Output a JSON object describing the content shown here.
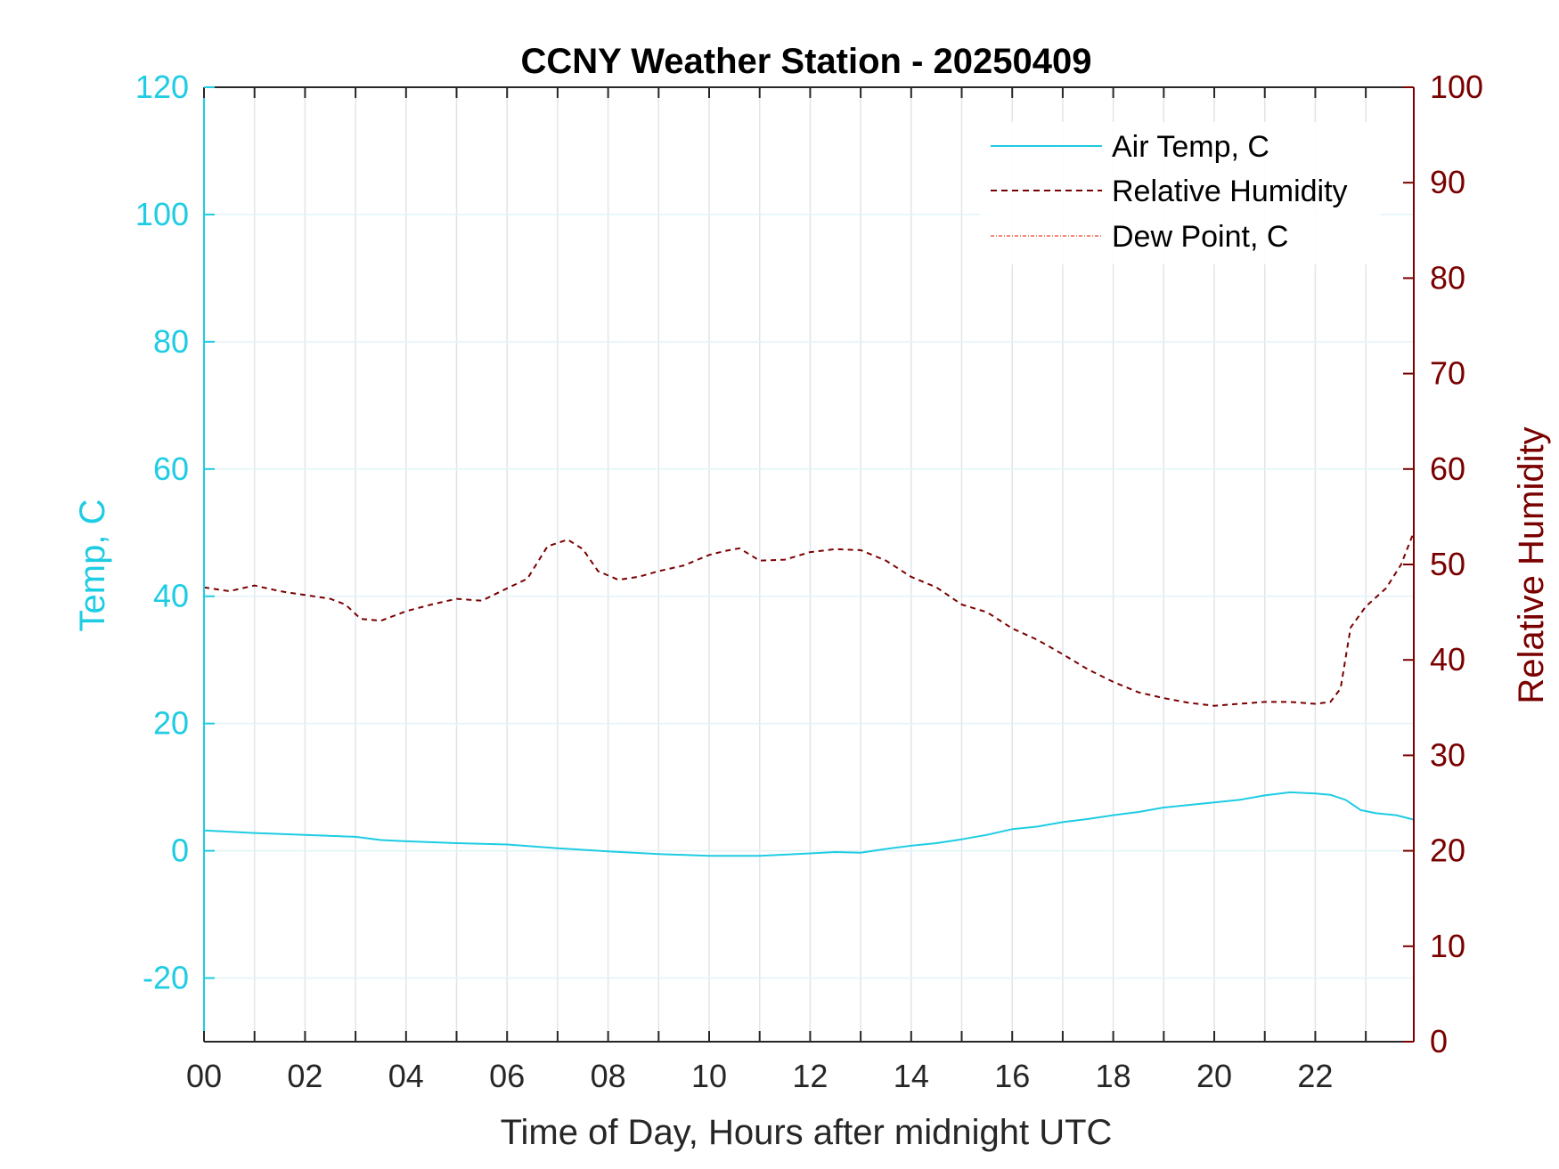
{
  "chart_data": {
    "type": "line",
    "title": "CCNY Weather Station - 20250409",
    "xlabel": "Time of Day, Hours after midnight UTC",
    "ylabel_left": "Temp, C",
    "ylabel_right": "Relative Humidity",
    "xlim": [
      0,
      23.95
    ],
    "ylim_left": [
      -30,
      120
    ],
    "ylim_right": [
      0,
      100
    ],
    "x_ticks": [
      0,
      2,
      4,
      6,
      8,
      10,
      12,
      14,
      16,
      18,
      20,
      22
    ],
    "x_tick_labels": [
      "00",
      "02",
      "04",
      "06",
      "08",
      "10",
      "12",
      "14",
      "16",
      "18",
      "20",
      "22"
    ],
    "y_left_ticks": [
      -20,
      0,
      20,
      40,
      60,
      80,
      100,
      120
    ],
    "y_right_ticks": [
      0,
      10,
      20,
      30,
      40,
      50,
      60,
      70,
      80,
      90,
      100
    ],
    "grid": true,
    "legend_position": "top-right",
    "colors": {
      "air_temp": "#1ECCE3",
      "relative_humidity": "#7A0000",
      "dew_point": "#F0604A",
      "axis_box": "#262626",
      "grid": "#dfe5ea"
    },
    "series": [
      {
        "name": "Air Temp, C",
        "axis": "left",
        "style": "solid",
        "x": [
          0,
          1,
          2,
          3,
          3.5,
          4,
          5,
          6,
          7,
          8,
          9,
          10,
          10.5,
          11,
          11.5,
          12,
          12.5,
          13,
          13.5,
          14,
          14.5,
          15,
          15.5,
          16,
          16.5,
          17,
          17.5,
          18,
          18.5,
          19,
          19.5,
          20,
          20.5,
          21,
          21.5,
          22,
          22.3,
          22.6,
          22.9,
          23.2,
          23.6,
          23.95
        ],
        "y": [
          3.2,
          2.8,
          2.5,
          2.2,
          1.7,
          1.5,
          1.2,
          1.0,
          0.4,
          -0.1,
          -0.5,
          -0.8,
          -0.8,
          -0.8,
          -0.6,
          -0.4,
          -0.2,
          -0.3,
          0.3,
          0.8,
          1.2,
          1.8,
          2.5,
          3.4,
          3.8,
          4.5,
          5.0,
          5.6,
          6.1,
          6.8,
          7.2,
          7.6,
          8.0,
          8.7,
          9.2,
          9.0,
          8.8,
          8.0,
          6.4,
          5.9,
          5.6,
          4.9
        ]
      },
      {
        "name": "Relative Humidity",
        "axis": "right",
        "style": "dashed",
        "x": [
          0,
          0.5,
          1,
          1.5,
          2,
          2.5,
          2.8,
          3.1,
          3.5,
          4,
          4.5,
          5,
          5.5,
          6,
          6.4,
          6.8,
          7.2,
          7.5,
          7.8,
          8.2,
          8.6,
          9,
          9.5,
          10,
          10.3,
          10.6,
          11,
          11.5,
          12,
          12.5,
          13,
          13.5,
          14,
          14.5,
          15,
          15.5,
          16,
          16.5,
          17,
          17.5,
          18,
          18.5,
          19,
          19.5,
          20,
          20.5,
          21,
          21.5,
          22,
          22.3,
          22.5,
          22.7,
          23,
          23.4,
          23.7,
          23.95
        ],
        "y": [
          47.6,
          47.2,
          47.8,
          47.2,
          46.8,
          46.4,
          45.8,
          44.3,
          44.1,
          45.1,
          45.8,
          46.4,
          46.2,
          47.5,
          48.5,
          51.9,
          52.6,
          51.6,
          49.3,
          48.4,
          48.7,
          49.3,
          49.9,
          51.0,
          51.4,
          51.7,
          50.4,
          50.5,
          51.3,
          51.6,
          51.5,
          50.4,
          48.7,
          47.6,
          45.8,
          45.0,
          43.3,
          42.1,
          40.6,
          39.0,
          37.7,
          36.6,
          36.0,
          35.5,
          35.2,
          35.4,
          35.6,
          35.6,
          35.4,
          35.6,
          37.0,
          43.4,
          45.6,
          47.5,
          50.0,
          53.4
        ]
      },
      {
        "name": "Dew Point, C",
        "axis": "left",
        "style": "dash-dot",
        "x": [],
        "y": []
      }
    ]
  }
}
